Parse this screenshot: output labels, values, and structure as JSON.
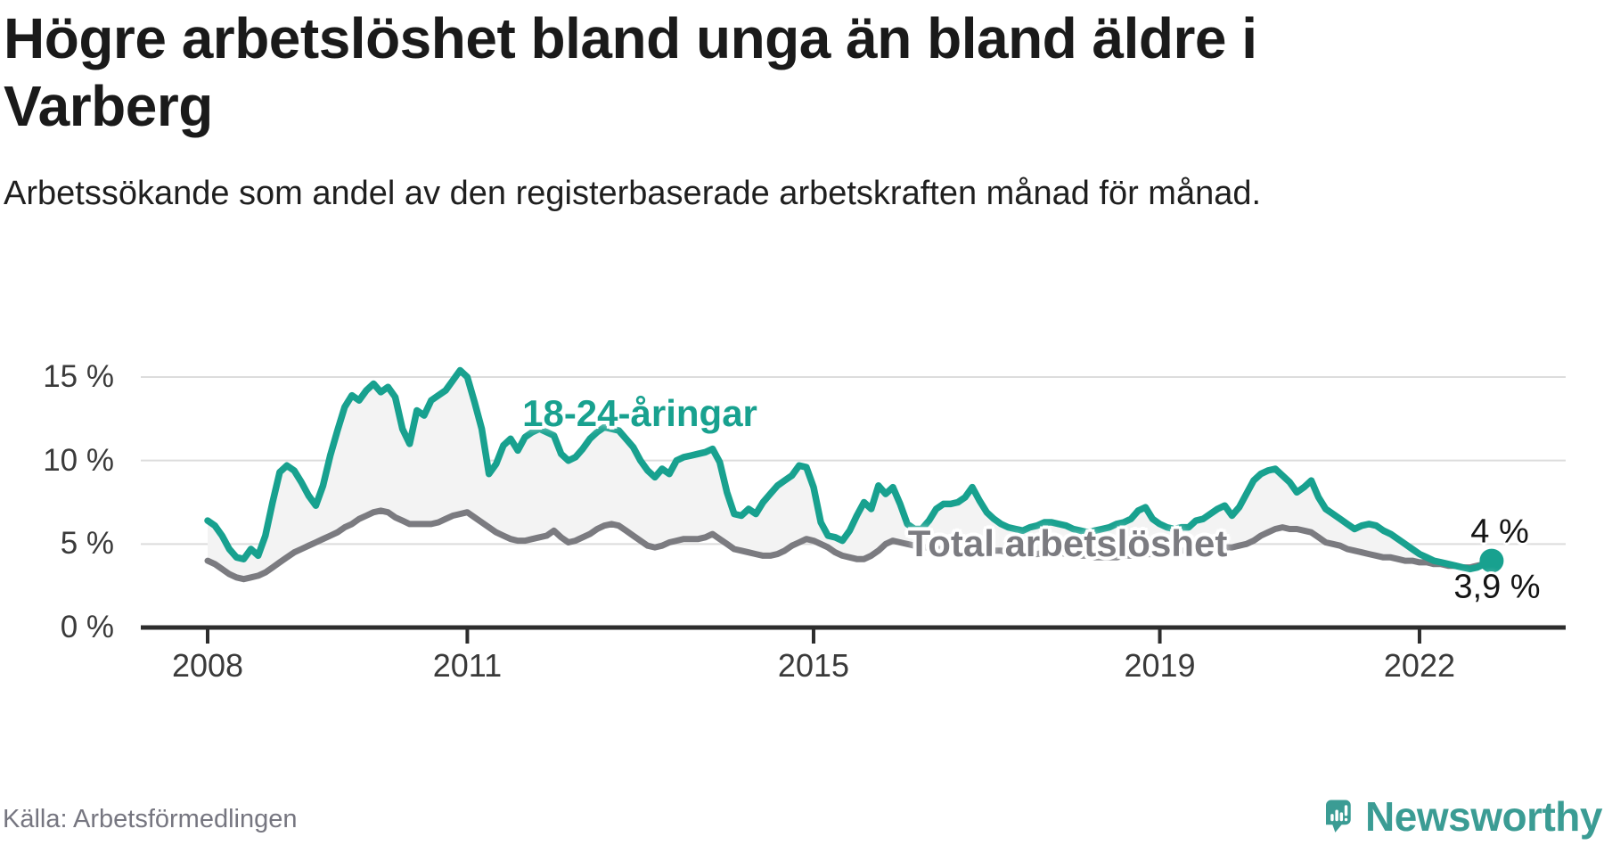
{
  "header": {
    "title": "Högre arbetslöshet bland unga än bland äldre i Varberg",
    "subtitle": "Arbetssökande som andel av den registerbaserade arbetskraften månad för månad."
  },
  "footer": {
    "source": "Källa: Arbetsförmedlingen",
    "brand": "Newsworthy"
  },
  "colors": {
    "youth_line": "#18a18f",
    "total_line": "#7b7b80",
    "fill_between": "#f3f3f3",
    "gridline": "#dcdcdc",
    "axis": "#2d2d2d",
    "title_text": "#1a1a1a",
    "tick_label": "#3a3a3a",
    "end_label_text": "#141414",
    "source_text": "#767680",
    "logo_teal": "#3b9c94",
    "background": "#ffffff"
  },
  "chart_data": {
    "type": "line",
    "title": "Högre arbetslöshet bland unga än bland äldre i Varberg",
    "subtitle": "Arbetssökande som andel av den registerbaserade arbetskraften månad för månad.",
    "unit": "%",
    "frequency": "monthly",
    "x_start": "2008-01",
    "x_end": "2022-11",
    "ylim": [
      0,
      16.5
    ],
    "grid": "horizontal",
    "legend": "inline-labels",
    "yticks": [
      0,
      5,
      10,
      15
    ],
    "ytick_labels": [
      "0 %",
      "5 %",
      "10 %",
      "15 %"
    ],
    "xtick_years": [
      2008,
      2011,
      2015,
      2019,
      2022
    ],
    "xtick_labels": [
      "2008",
      "2011",
      "2015",
      "2019",
      "2022"
    ],
    "series": [
      {
        "name": "18-24-åringar",
        "color": "#18a18f",
        "end_label": "4 %",
        "end_value": 4.0,
        "end_dot": true,
        "values": [
          6.4,
          6.1,
          5.5,
          4.7,
          4.2,
          4.1,
          4.7,
          4.3,
          5.5,
          7.5,
          9.3,
          9.7,
          9.4,
          8.7,
          7.9,
          7.3,
          8.5,
          10.3,
          11.8,
          13.2,
          13.9,
          13.6,
          14.2,
          14.6,
          14.1,
          14.4,
          13.8,
          11.9,
          11.0,
          13.0,
          12.7,
          13.6,
          13.9,
          14.2,
          14.8,
          15.4,
          15.0,
          13.5,
          11.9,
          9.2,
          9.8,
          10.9,
          11.3,
          10.6,
          11.4,
          11.7,
          11.9,
          11.7,
          11.5,
          10.4,
          10.0,
          10.2,
          10.7,
          11.3,
          11.7,
          12.0,
          11.9,
          11.8,
          11.3,
          10.8,
          10.0,
          9.4,
          9.0,
          9.5,
          9.2,
          10.0,
          10.2,
          10.3,
          10.4,
          10.5,
          10.7,
          9.9,
          8.1,
          6.8,
          6.7,
          7.1,
          6.8,
          7.5,
          8.0,
          8.5,
          8.8,
          9.1,
          9.7,
          9.6,
          8.4,
          6.3,
          5.5,
          5.4,
          5.2,
          5.8,
          6.7,
          7.5,
          7.1,
          8.5,
          8.0,
          8.4,
          7.4,
          6.2,
          5.9,
          5.9,
          6.4,
          7.1,
          7.4,
          7.4,
          7.5,
          7.8,
          8.4,
          7.6,
          6.9,
          6.5,
          6.2,
          6.0,
          5.9,
          5.8,
          6.0,
          6.1,
          6.3,
          6.3,
          6.2,
          6.1,
          5.9,
          5.8,
          5.7,
          5.8,
          5.9,
          6.0,
          6.2,
          6.3,
          6.5,
          7.0,
          7.2,
          6.5,
          6.2,
          6.0,
          5.9,
          6.0,
          6.0,
          6.4,
          6.5,
          6.8,
          7.1,
          7.3,
          6.7,
          7.2,
          8.0,
          8.8,
          9.2,
          9.4,
          9.5,
          9.1,
          8.7,
          8.1,
          8.4,
          8.8,
          7.8,
          7.1,
          6.8,
          6.5,
          6.2,
          5.9,
          6.1,
          6.2,
          6.1,
          5.8,
          5.6,
          5.3,
          5.0,
          4.7,
          4.4,
          4.2,
          4.0,
          3.9,
          3.8,
          3.7,
          3.6,
          3.5,
          3.6,
          3.8,
          4.0
        ]
      },
      {
        "name": "Total arbetslöshet",
        "color": "#7b7b80",
        "end_label": "3,9 %",
        "end_value": 3.9,
        "end_dot": false,
        "values": [
          4.0,
          3.8,
          3.5,
          3.2,
          3.0,
          2.9,
          3.0,
          3.1,
          3.3,
          3.6,
          3.9,
          4.2,
          4.5,
          4.7,
          4.9,
          5.1,
          5.3,
          5.5,
          5.7,
          6.0,
          6.2,
          6.5,
          6.7,
          6.9,
          7.0,
          6.9,
          6.6,
          6.4,
          6.2,
          6.2,
          6.2,
          6.2,
          6.3,
          6.5,
          6.7,
          6.8,
          6.9,
          6.6,
          6.3,
          6.0,
          5.7,
          5.5,
          5.3,
          5.2,
          5.2,
          5.3,
          5.4,
          5.5,
          5.8,
          5.4,
          5.1,
          5.2,
          5.4,
          5.6,
          5.9,
          6.1,
          6.2,
          6.1,
          5.8,
          5.5,
          5.2,
          4.9,
          4.8,
          4.9,
          5.1,
          5.2,
          5.3,
          5.3,
          5.3,
          5.4,
          5.6,
          5.3,
          5.0,
          4.7,
          4.6,
          4.5,
          4.4,
          4.3,
          4.3,
          4.4,
          4.6,
          4.9,
          5.1,
          5.3,
          5.2,
          5.0,
          4.8,
          4.5,
          4.3,
          4.2,
          4.1,
          4.1,
          4.3,
          4.6,
          5.0,
          5.2,
          5.1,
          5.0,
          4.9,
          4.8,
          4.8,
          4.7,
          4.7,
          4.7,
          4.8,
          4.8,
          4.8,
          4.7,
          4.7,
          4.6,
          4.6,
          4.5,
          4.5,
          4.4,
          4.4,
          4.4,
          4.5,
          4.5,
          4.5,
          4.4,
          4.4,
          4.3,
          4.3,
          4.2,
          4.2,
          4.2,
          4.2,
          4.3,
          4.3,
          4.4,
          4.4,
          4.4,
          4.5,
          4.5,
          4.5,
          4.6,
          4.6,
          4.6,
          4.7,
          4.7,
          4.8,
          4.8,
          4.8,
          4.9,
          5.0,
          5.2,
          5.5,
          5.7,
          5.9,
          6.0,
          5.9,
          5.9,
          5.8,
          5.7,
          5.4,
          5.1,
          5.0,
          4.9,
          4.7,
          4.6,
          4.5,
          4.4,
          4.3,
          4.2,
          4.2,
          4.1,
          4.0,
          4.0,
          3.9,
          3.9,
          3.8,
          3.8,
          3.7,
          3.7,
          3.6,
          3.6,
          3.7,
          3.8,
          3.9
        ]
      }
    ]
  }
}
